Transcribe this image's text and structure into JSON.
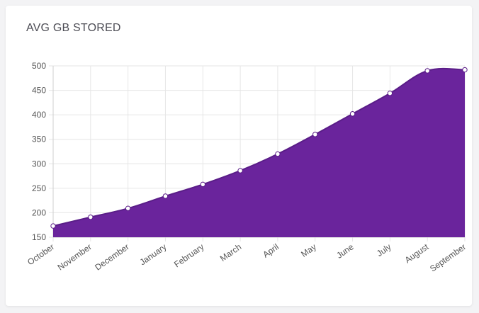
{
  "card": {
    "title": "AVG GB STORED"
  },
  "colors": {
    "fill": "#6a249c",
    "line": "#5a1d88",
    "point_fill": "#ffffff",
    "grid": "#e6e6e6",
    "axis": "#cfcfcf"
  },
  "chart_data": {
    "type": "area",
    "title": "AVG GB STORED",
    "xlabel": "",
    "ylabel": "",
    "categories": [
      "October",
      "November",
      "December",
      "January",
      "February",
      "March",
      "April",
      "May",
      "June",
      "July",
      "August",
      "September"
    ],
    "values": [
      173,
      191,
      209,
      234,
      258,
      286,
      320,
      360,
      402,
      444,
      490,
      492
    ],
    "ylim": [
      150,
      500
    ],
    "yticks": [
      150,
      200,
      250,
      300,
      350,
      400,
      450,
      500
    ],
    "grid": true,
    "legend": "none",
    "smooth": true
  }
}
